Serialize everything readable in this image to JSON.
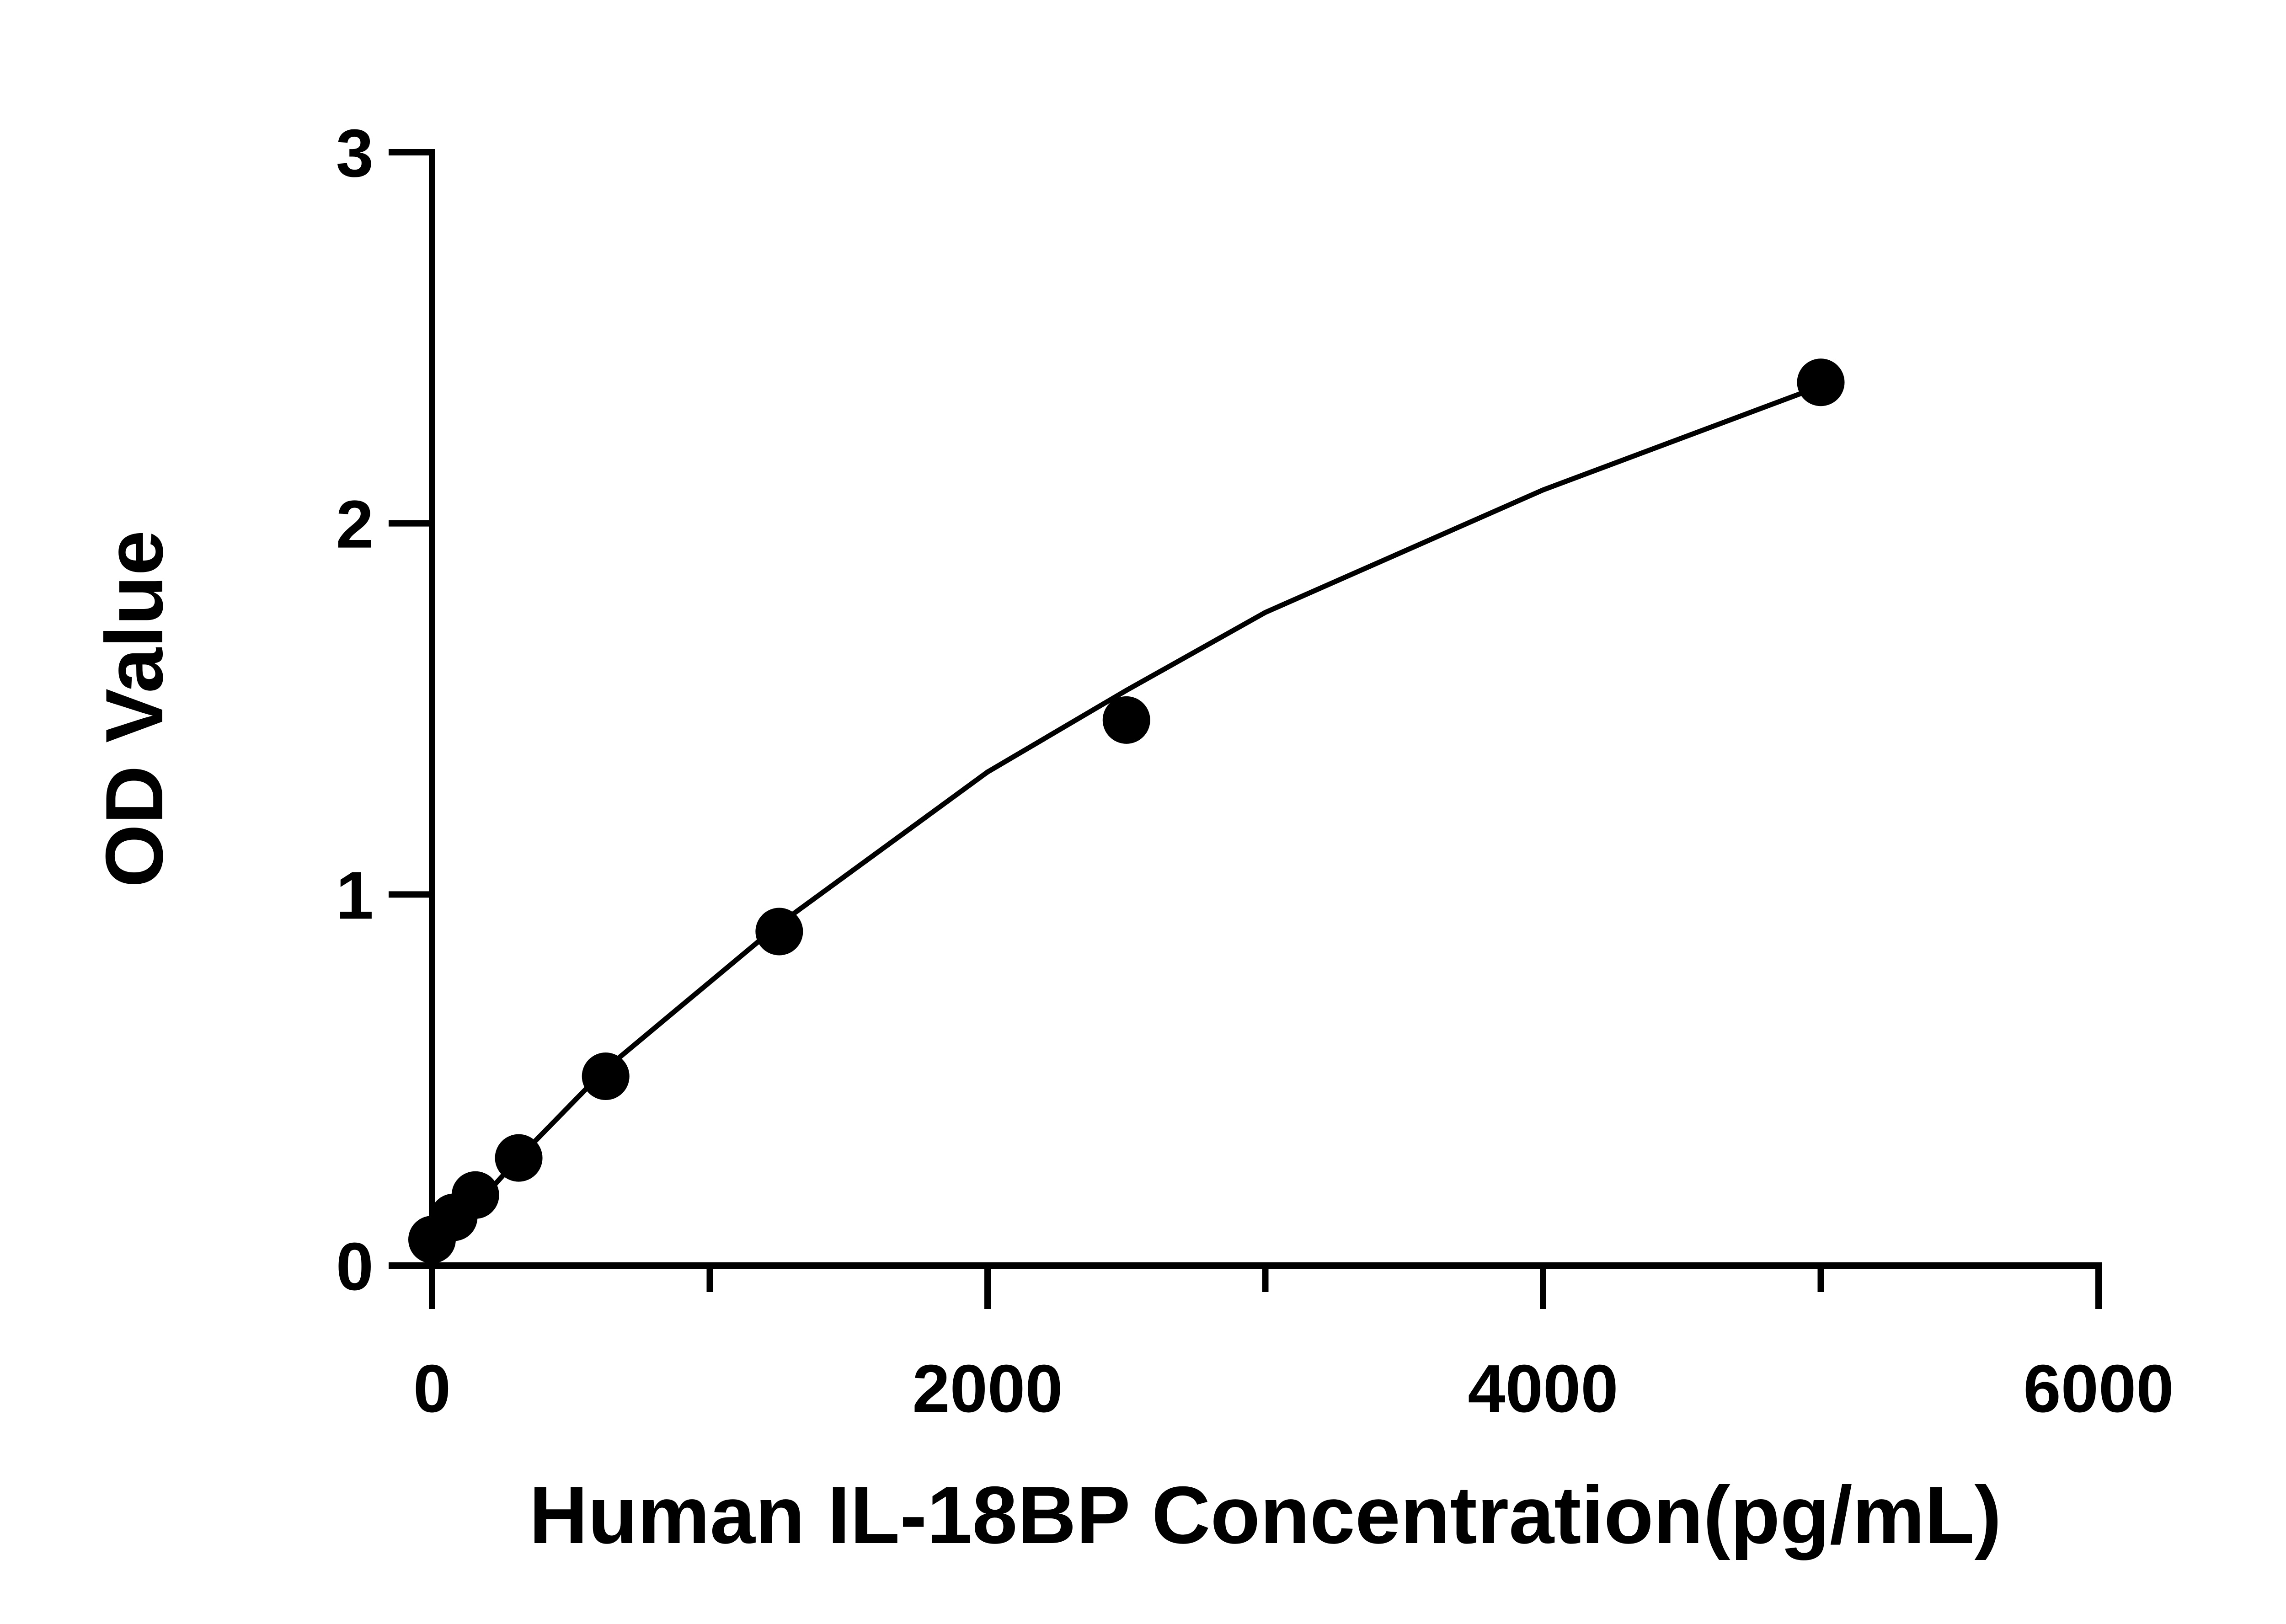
{
  "chart_data": {
    "type": "scatter",
    "title": "",
    "xlabel": "Human IL-18BP Concentration(pg/mL)",
    "ylabel": "OD Value",
    "xlim": [
      0,
      6000
    ],
    "ylim": [
      0,
      3
    ],
    "x_ticks": [
      0,
      2000,
      4000,
      6000
    ],
    "x_tick_labels": [
      "0",
      "2000",
      "4000",
      "6000"
    ],
    "x_minor_ticks": [
      1000,
      3000,
      5000
    ],
    "y_ticks": [
      0,
      1,
      2,
      3
    ],
    "y_tick_labels": [
      "0",
      "1",
      "2",
      "3"
    ],
    "grid": false,
    "legend": "none",
    "series": [
      {
        "style": "markers",
        "color": "#000000",
        "x": [
          0,
          78,
          156,
          312,
          625,
          1250,
          2500,
          5000
        ],
        "y": [
          0.07,
          0.13,
          0.19,
          0.29,
          0.51,
          0.9,
          1.47,
          2.38
        ]
      },
      {
        "style": "fit-curve",
        "color": "#000000",
        "x": [
          0,
          78,
          156,
          312,
          625,
          1250,
          2000,
          2500,
          3000,
          4000,
          5000
        ],
        "y": [
          0.02,
          0.09,
          0.16,
          0.29,
          0.53,
          0.92,
          1.33,
          1.55,
          1.76,
          2.09,
          2.37
        ]
      }
    ]
  }
}
